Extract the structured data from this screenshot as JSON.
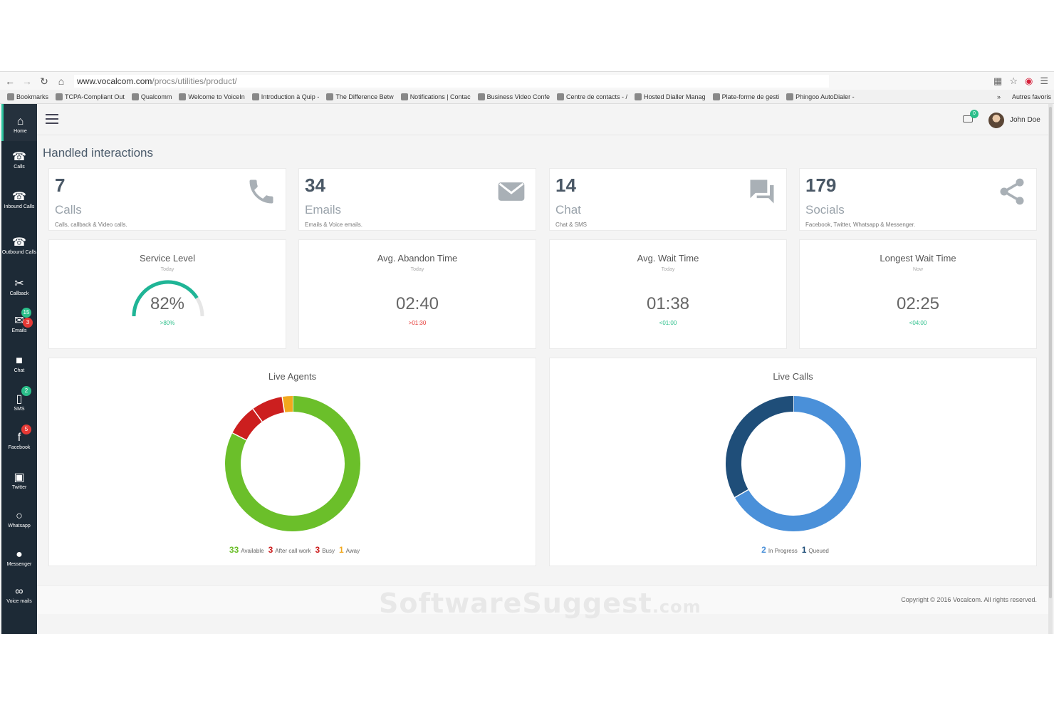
{
  "browser": {
    "url_host": "www.vocalcom.com",
    "url_path": "/procs/utilities/product/",
    "bookmarks": [
      "Bookmarks",
      "TCPA-Compliant Out",
      "Qualcomm",
      "Welcome to VoiceIn",
      "Introduction à Quip -",
      "The Difference Betw",
      "Notifications | Contac",
      "Business Video Confe",
      "Centre de contacts - /",
      "Hosted Dialler Manag",
      "Plate-forme de gesti",
      "Phingoo AutoDialer -"
    ],
    "bookmarks_more": "»",
    "other_bookmarks": "Autres favoris"
  },
  "sidebar": {
    "items": [
      {
        "label": "Home",
        "icon": "home-icon"
      },
      {
        "label": "Calls",
        "icon": "phone-icon"
      },
      {
        "label": "Inbound Calls",
        "icon": "inbound-phone-icon"
      },
      {
        "label": "Outbound Calls",
        "icon": "outbound-phone-icon"
      },
      {
        "label": "Callback",
        "icon": "callback-icon"
      },
      {
        "label": "Emails",
        "icon": "email-icon",
        "badges": [
          "15",
          "3"
        ]
      },
      {
        "label": "Chat",
        "icon": "chat-icon"
      },
      {
        "label": "SMS",
        "icon": "mobile-icon",
        "badges": [
          "2"
        ]
      },
      {
        "label": "Facebook",
        "icon": "facebook-icon",
        "badges": [
          "5"
        ]
      },
      {
        "label": "Twitter",
        "icon": "twitter-icon"
      },
      {
        "label": "Whatsapp",
        "icon": "whatsapp-icon"
      },
      {
        "label": "Messenger",
        "icon": "messenger-icon"
      },
      {
        "label": "Voice mails",
        "icon": "voicemail-icon"
      }
    ]
  },
  "header": {
    "notification_count": "0",
    "user_name": "John Doe"
  },
  "main": {
    "title": "Handled interactions",
    "kpis": [
      {
        "value": "7",
        "label": "Calls",
        "sub": "Calls, callback & Video calls.",
        "icon": "phone-icon"
      },
      {
        "value": "34",
        "label": "Emails",
        "sub": "Emails & Voice emails.",
        "icon": "envelope-icon"
      },
      {
        "value": "14",
        "label": "Chat",
        "sub": "Chat & SMS",
        "icon": "chat-bubbles-icon"
      },
      {
        "value": "179",
        "label": "Socials",
        "sub": "Facebook, Twitter, Whatsapp & Messenger.",
        "icon": "share-icon"
      }
    ],
    "metrics": [
      {
        "title": "Service Level",
        "when": "Today",
        "value": "82%",
        "target": ">80%",
        "target_color": "green",
        "gauge_fraction": 0.82
      },
      {
        "title": "Avg. Abandon Time",
        "when": "Today",
        "value": "02:40",
        "target": ">01:30",
        "target_color": "red"
      },
      {
        "title": "Avg. Wait Time",
        "when": "Today",
        "value": "01:38",
        "target": "<01:00",
        "target_color": "green"
      },
      {
        "title": "Longest Wait Time",
        "when": "Now",
        "value": "02:25",
        "target": "<04:00",
        "target_color": "green"
      }
    ],
    "live_agents": {
      "title": "Live Agents",
      "segments": [
        {
          "value": 33,
          "label": "Available",
          "color": "#6bbf2a"
        },
        {
          "value": 3,
          "label": "After call work",
          "color": "#cc1f1f"
        },
        {
          "value": 3,
          "label": "Busy",
          "color": "#cc1f1f"
        },
        {
          "value": 1,
          "label": "Away",
          "color": "#f2a81d"
        }
      ]
    },
    "live_calls": {
      "title": "Live Calls",
      "segments": [
        {
          "value": 2,
          "label": "In Progress",
          "color": "#4a90d9"
        },
        {
          "value": 1,
          "label": "Queued",
          "color": "#1f4e79"
        }
      ]
    }
  },
  "footer": {
    "watermark": "SoftwareSuggest",
    "watermark_suffix": ".com",
    "copyright": "Copyright © 2016 Vocalcom. All rights reserved."
  }
}
